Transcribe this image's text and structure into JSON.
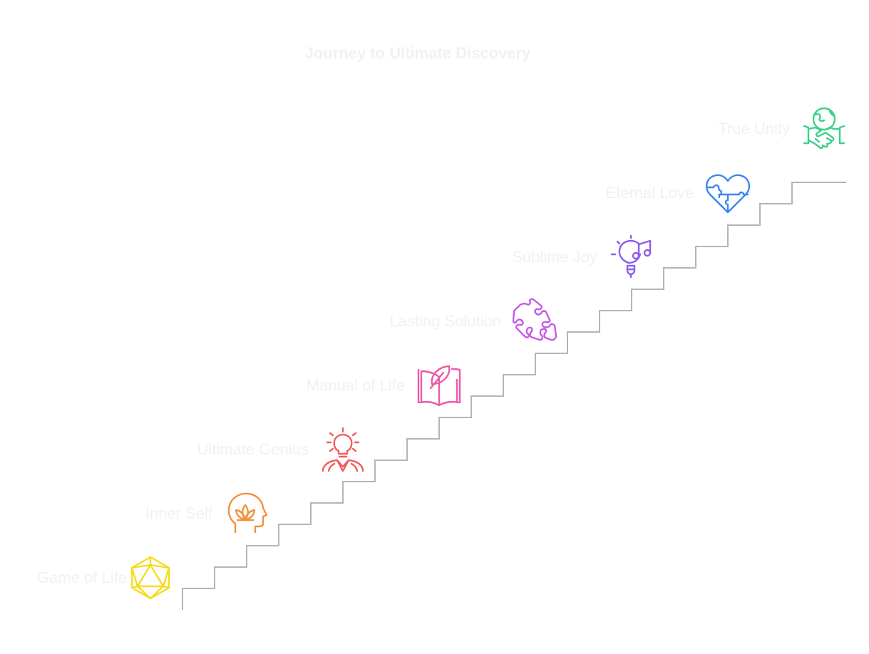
{
  "title": "Journey to Ultimate Discovery",
  "colors": {
    "label_text": "#f1f1f1",
    "staircase": "#b5b5b5"
  },
  "steps": [
    {
      "label": "Game of Life",
      "icon": "icosahedron-icon",
      "color": "#f5dc1f"
    },
    {
      "label": "Inner Self",
      "icon": "head-lotus-icon",
      "color": "#f0923a"
    },
    {
      "label": "Ultimate Genius",
      "icon": "lightbulb-person-icon",
      "color": "#ef5f5f"
    },
    {
      "label": "Manual of Life",
      "icon": "book-leaf-icon",
      "color": "#ec5aa8"
    },
    {
      "label": "Lasting Solution",
      "icon": "puzzle-piece-icon",
      "color": "#c45ae8"
    },
    {
      "label": "Sublime Joy",
      "icon": "bulb-music-note-icon",
      "color": "#8b5cf0"
    },
    {
      "label": "Eternal Love",
      "icon": "heart-puzzle-icon",
      "color": "#3c86f0"
    },
    {
      "label": "True Unity",
      "icon": "globe-handshake-icon",
      "color": "#3cd18a"
    }
  ]
}
